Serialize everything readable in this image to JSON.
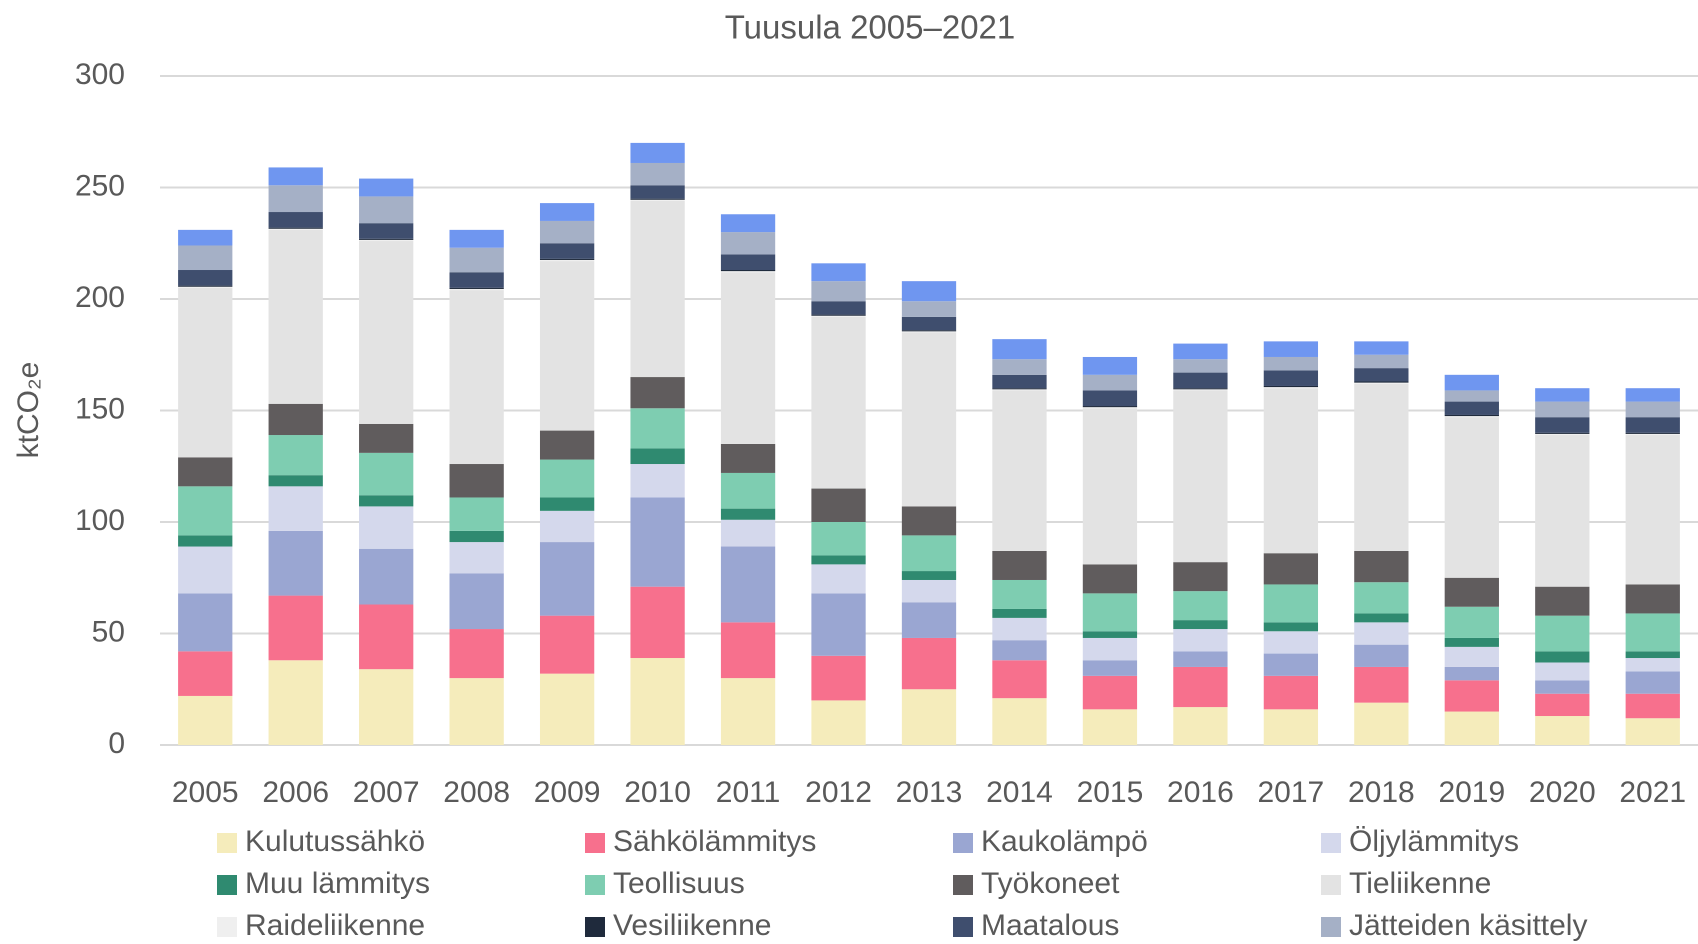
{
  "chart_data": {
    "type": "stacked_bar",
    "title": "Tuusula 2005–2021",
    "y_label": "ktCO₂e",
    "categories": [
      "2005",
      "2006",
      "2007",
      "2008",
      "2009",
      "2010",
      "2011",
      "2012",
      "2013",
      "2014",
      "2015",
      "2016",
      "2017",
      "2018",
      "2019",
      "2020",
      "2021"
    ],
    "ylim": [
      0,
      300
    ],
    "yticks": [
      0,
      50,
      100,
      150,
      200,
      250,
      300
    ],
    "grid": true,
    "legend": "bottom",
    "series": [
      {
        "name": "Kulutussähkö",
        "color": "#f5ecbb",
        "values": [
          22,
          38,
          34,
          30,
          32,
          39,
          30,
          20,
          25,
          21,
          16,
          17,
          16,
          19,
          15,
          13,
          12
        ]
      },
      {
        "name": "Sähkölämmitys",
        "color": "#f7708d",
        "values": [
          20,
          29,
          29,
          22,
          26,
          32,
          25,
          20,
          23,
          17,
          15,
          18,
          15,
          16,
          14,
          10,
          11
        ]
      },
      {
        "name": "Kaukolämpö",
        "color": "#9aa6d2",
        "values": [
          26,
          29,
          25,
          25,
          33,
          40,
          34,
          28,
          16,
          9,
          7,
          7,
          10,
          10,
          6,
          6,
          10
        ]
      },
      {
        "name": "Öljylämmitys",
        "color": "#d4d8ec",
        "values": [
          21,
          20,
          19,
          14,
          14,
          15,
          12,
          13,
          10,
          10,
          10,
          10,
          10,
          10,
          9,
          8,
          6
        ]
      },
      {
        "name": "Muu lämmitys",
        "color": "#2f8a70",
        "values": [
          5,
          5,
          5,
          5,
          6,
          7,
          5,
          4,
          4,
          4,
          3,
          4,
          4,
          4,
          4,
          5,
          3
        ]
      },
      {
        "name": "Teollisuus",
        "color": "#7ecdb1",
        "values": [
          22,
          18,
          19,
          15,
          17,
          18,
          16,
          15,
          16,
          13,
          17,
          13,
          17,
          14,
          14,
          16,
          17
        ]
      },
      {
        "name": "Työkoneet",
        "color": "#605c5d",
        "values": [
          13,
          14,
          13,
          15,
          13,
          14,
          13,
          15,
          13,
          13,
          13,
          13,
          14,
          14,
          13,
          13,
          13
        ]
      },
      {
        "name": "Tieliikenne",
        "color": "#e3e3e3",
        "values": [
          76,
          78,
          82,
          78,
          76,
          79,
          77,
          77,
          78,
          72,
          70,
          77,
          74,
          75,
          72,
          68,
          67
        ]
      },
      {
        "name": "Raideliikenne",
        "color": "#efefef",
        "values": [
          0.5,
          0.5,
          0.5,
          0.5,
          0.5,
          0.5,
          0.5,
          0.5,
          0.5,
          0.5,
          0.5,
          0.5,
          0.5,
          0.5,
          0.5,
          0.5,
          0.5
        ]
      },
      {
        "name": "Vesiliikenne",
        "color": "#1f2a3c",
        "values": [
          0.5,
          0.5,
          0.5,
          0.5,
          0.5,
          0.5,
          0.5,
          0.5,
          0.5,
          0.5,
          0.5,
          0.5,
          0.5,
          0.5,
          0.5,
          0.5,
          0.5
        ]
      },
      {
        "name": "Maatalous",
        "color": "#3f4e6e",
        "values": [
          7,
          7,
          7,
          7,
          7,
          6,
          7,
          6,
          6,
          6,
          7,
          7,
          7,
          6,
          6,
          7,
          7
        ]
      },
      {
        "name": "Jätteiden käsittely",
        "color": "#a5b0c6",
        "values": [
          11,
          12,
          12,
          11,
          10,
          10,
          10,
          9,
          7,
          7,
          7,
          6,
          6,
          6,
          5,
          7,
          7
        ]
      },
      {
        "color": "#6f96f0",
        "values": [
          7,
          8,
          8,
          8,
          8,
          9,
          8,
          8,
          9,
          9,
          8,
          7,
          7,
          6,
          7,
          6,
          6
        ]
      }
    ]
  }
}
